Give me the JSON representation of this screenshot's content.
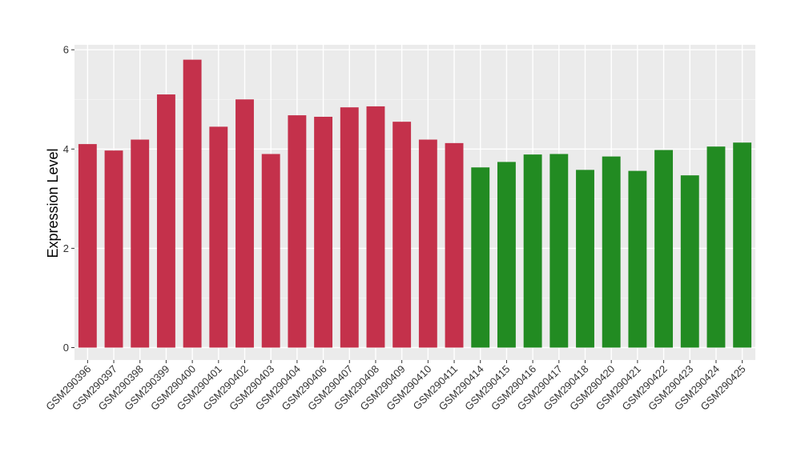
{
  "chart_data": {
    "type": "bar",
    "title": "",
    "xlabel": "",
    "ylabel": "Expression Level",
    "ylim": [
      -0.25,
      6.1
    ],
    "yticks": [
      0,
      2,
      4,
      6
    ],
    "grid": true,
    "background": "#ebebeb",
    "categories": [
      "GSM290396",
      "GSM290397",
      "GSM290398",
      "GSM290399",
      "GSM290400",
      "GSM290401",
      "GSM290402",
      "GSM290403",
      "GSM290404",
      "GSM290406",
      "GSM290407",
      "GSM290408",
      "GSM290409",
      "GSM290410",
      "GSM290411",
      "GSM290414",
      "GSM290415",
      "GSM290416",
      "GSM290417",
      "GSM290418",
      "GSM290420",
      "GSM290421",
      "GSM290422",
      "GSM290423",
      "GSM290424",
      "GSM290425"
    ],
    "values": [
      4.1,
      3.97,
      4.19,
      5.1,
      5.8,
      4.45,
      5.0,
      3.9,
      4.68,
      4.65,
      4.84,
      4.86,
      4.55,
      4.19,
      4.12,
      3.63,
      3.74,
      3.89,
      3.9,
      3.58,
      3.85,
      3.56,
      3.98,
      3.47,
      4.05,
      4.13
    ],
    "groups": [
      "red",
      "red",
      "red",
      "red",
      "red",
      "red",
      "red",
      "red",
      "red",
      "red",
      "red",
      "red",
      "red",
      "red",
      "red",
      "green",
      "green",
      "green",
      "green",
      "green",
      "green",
      "green",
      "green",
      "green",
      "green",
      "green"
    ],
    "colors": {
      "red": "#c4314b",
      "green": "#228b22"
    }
  }
}
